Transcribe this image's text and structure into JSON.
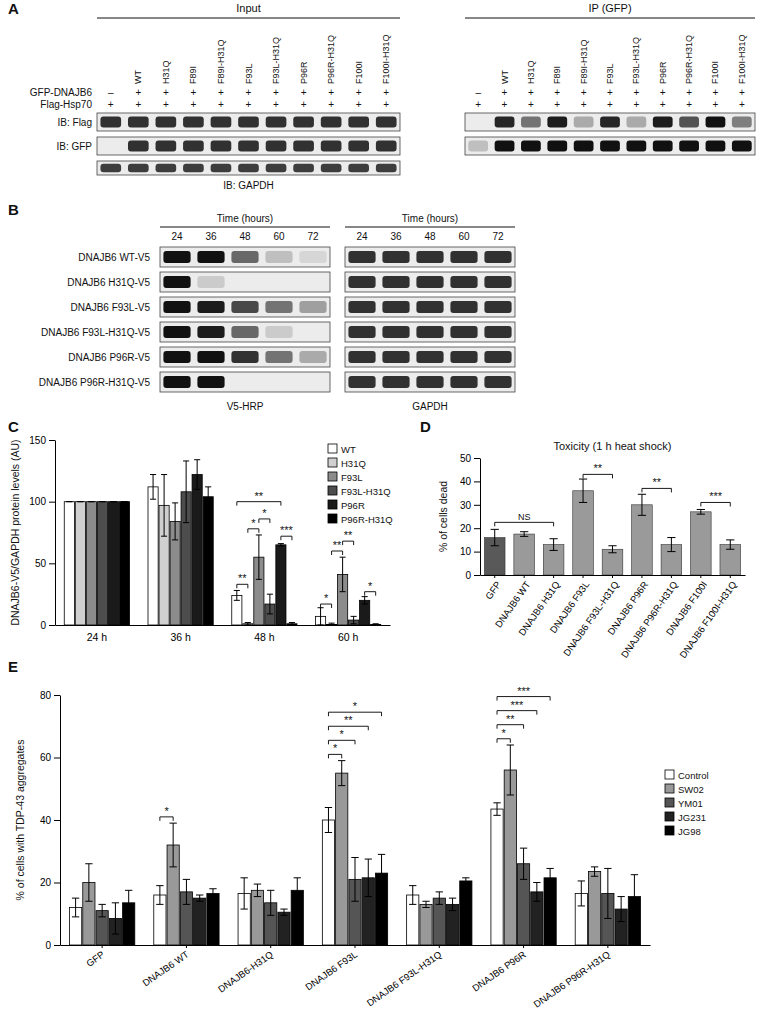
{
  "figure_A": {
    "panel_label": "A",
    "input_title": "Input",
    "ip_title": "IP (GFP)",
    "row_labels": {
      "gfp": "GFP-DNAJB6",
      "flag": "Flag-Hsp70"
    },
    "lanes": [
      null,
      "WT",
      "H31Q",
      "F89I",
      "F89I-H31Q",
      "F93L",
      "F93L-H31Q",
      "P96R",
      "P96R-H31Q",
      "F100I",
      "F100I-H31Q"
    ],
    "gfp_signs": [
      "–",
      "+",
      "+",
      "+",
      "+",
      "+",
      "+",
      "+",
      "+",
      "+",
      "+"
    ],
    "flag_signs": [
      "+",
      "+",
      "+",
      "+",
      "+",
      "+",
      "+",
      "+",
      "+",
      "+",
      "+"
    ],
    "input_blots": [
      {
        "label": "IB: Flag",
        "intensity": [
          0.85,
          0.85,
          0.85,
          0.85,
          0.85,
          0.85,
          0.85,
          0.85,
          0.85,
          0.85,
          0.85
        ]
      },
      {
        "label": "IB: GFP",
        "intensity": [
          0,
          0.85,
          0.85,
          0.85,
          0.85,
          0.85,
          0.85,
          0.85,
          0.85,
          0.85,
          0.85
        ]
      },
      {
        "label": "IB: GAPDH",
        "intensity": [
          0.8,
          0.8,
          0.8,
          0.8,
          0.8,
          0.8,
          0.8,
          0.8,
          0.8,
          0.8,
          0.8
        ]
      }
    ],
    "ip_blots": [
      {
        "intensity": [
          0,
          0.9,
          0.55,
          0.95,
          0.3,
          0.9,
          0.3,
          0.95,
          0.7,
          1,
          0.5
        ]
      },
      {
        "intensity": [
          0.2,
          1,
          1,
          1,
          1,
          1,
          1,
          1,
          1,
          1,
          1
        ]
      }
    ]
  },
  "figure_B": {
    "panel_label": "B",
    "time_title": "Time (hours)",
    "times": [
      24,
      36,
      48,
      60,
      72
    ],
    "rows": [
      "DNAJB6 WT-V5",
      "DNAJB6 H31Q-V5",
      "DNAJB6 F93L-V5",
      "DNAJB6 F93L-H31Q-V5",
      "DNAJB6 P96R-V5",
      "DNAJB6 P96R-H31Q-V5"
    ],
    "v5": {
      "label": "V5-HRP",
      "intensity": [
        [
          1,
          1,
          0.6,
          0.2,
          0.1
        ],
        [
          1,
          0.15,
          0,
          0,
          0
        ],
        [
          1,
          0.95,
          0.75,
          0.55,
          0.35
        ],
        [
          1,
          0.95,
          0.6,
          0.15,
          0
        ],
        [
          1,
          1,
          0.85,
          0.55,
          0.3
        ],
        [
          1,
          1,
          0,
          0,
          0
        ]
      ]
    },
    "gapdh": {
      "label": "GAPDH",
      "intensity": [
        [
          0.85,
          0.85,
          0.85,
          0.85,
          0.85
        ],
        [
          0.85,
          0.85,
          0.85,
          0.85,
          0.85
        ],
        [
          0.85,
          0.85,
          0.85,
          0.85,
          0.85
        ],
        [
          0.85,
          0.85,
          0.85,
          0.85,
          0.85
        ],
        [
          0.85,
          0.85,
          0.85,
          0.85,
          0.85
        ],
        [
          0.85,
          0.85,
          0.85,
          0.85,
          0.85
        ]
      ]
    }
  },
  "chart_data": [
    {
      "panel_label": "C",
      "type": "bar",
      "y_label": "DNAJB6-V5/GAPDH protein levels (AU)",
      "categories": [
        "24 h",
        "36 h",
        "48 h",
        "60 h"
      ],
      "ylim": [
        0,
        150
      ],
      "yticks": [
        0,
        50,
        100,
        150
      ],
      "legend": "top-right",
      "series": [
        {
          "name": "WT",
          "color": "#ffffff",
          "values": [
            100,
            112,
            24,
            7
          ],
          "errors": [
            0,
            10,
            4,
            7
          ]
        },
        {
          "name": "H31Q",
          "color": "#d0d0d0",
          "values": [
            100,
            97,
            1,
            0.5
          ],
          "errors": [
            0,
            25,
            1,
            1
          ]
        },
        {
          "name": "F93L",
          "color": "#8c8c8c",
          "values": [
            100,
            84,
            55,
            41
          ],
          "errors": [
            0,
            15,
            18,
            14
          ]
        },
        {
          "name": "F93L-H31Q",
          "color": "#4d4d4d",
          "values": [
            100,
            108,
            17,
            4
          ],
          "errors": [
            0,
            25,
            8,
            3
          ]
        },
        {
          "name": "P96R",
          "color": "#1a1a1a",
          "values": [
            100,
            122,
            65,
            20
          ],
          "errors": [
            0,
            12,
            1,
            3
          ]
        },
        {
          "name": "P96R-H31Q",
          "color": "#000000",
          "values": [
            100,
            104,
            1,
            0.5
          ],
          "errors": [
            0,
            8,
            1,
            0.5
          ]
        }
      ],
      "annotations": [
        {
          "text": "**",
          "category": 2,
          "from": 0,
          "to": 1,
          "y": 33
        },
        {
          "text": "*",
          "category": 2,
          "from": 1,
          "to": 2,
          "y": 78
        },
        {
          "text": "*",
          "category": 2,
          "from": 2,
          "to": 3,
          "y": 86
        },
        {
          "text": "**",
          "category": 2,
          "from": 0,
          "to": 4,
          "y": 100
        },
        {
          "text": "***",
          "category": 2,
          "from": 4,
          "to": 5,
          "y": 72
        },
        {
          "text": "*",
          "category": 3,
          "from": 0,
          "to": 1,
          "y": 17
        },
        {
          "text": "**",
          "category": 3,
          "from": 1,
          "to": 2,
          "y": 60
        },
        {
          "text": "**",
          "category": 3,
          "from": 2,
          "to": 3,
          "y": 68
        },
        {
          "text": "*",
          "category": 3,
          "from": 4,
          "to": 5,
          "y": 27
        }
      ]
    },
    {
      "panel_label": "D",
      "type": "bar",
      "title": "Toxicity (1 h heat shock)",
      "y_label": "% of cells dead",
      "categories": [
        "GFP",
        "DNAJB6 WT",
        "DNAJB6 H31Q",
        "DNAJB6 F93L",
        "DNAJB6 F93L-H31Q",
        "DNAJB6 P96R",
        "DNAJB6 P96R-H31Q",
        "DNAJB6 F100I",
        "DNAJB6 F100I-H31Q"
      ],
      "values": [
        16,
        17.5,
        13,
        36,
        11,
        30,
        13,
        27,
        13
      ],
      "errors": [
        3.5,
        1,
        2.5,
        5,
        1.5,
        4.5,
        3,
        1,
        2
      ],
      "colors": [
        "#595959",
        "#9a9a9a",
        "#9a9a9a",
        "#9a9a9a",
        "#9a9a9a",
        "#9a9a9a",
        "#9a9a9a",
        "#9a9a9a",
        "#9a9a9a"
      ],
      "ylim": [
        0,
        50
      ],
      "yticks": [
        0,
        10,
        20,
        30,
        40,
        50
      ],
      "annotations": [
        {
          "text": "NS",
          "from": 0,
          "to": 2,
          "y": 22.5
        },
        {
          "text": "**",
          "from": 3,
          "to": 4,
          "y": 43
        },
        {
          "text": "**",
          "from": 5,
          "to": 6,
          "y": 37
        },
        {
          "text": "***",
          "from": 7,
          "to": 8,
          "y": 31
        }
      ]
    },
    {
      "panel_label": "E",
      "type": "bar",
      "y_label": "% of cells with TDP-43 aggregates",
      "categories": [
        "GFP",
        "DNAJB6 WT",
        "DNAJB6-H31Q",
        "DNAJB6 F93L",
        "DNAJB6 F93L-H31Q",
        "DNAJB6 P96R",
        "DNAJB6 P96R-H31Q"
      ],
      "ylim": [
        0,
        80
      ],
      "yticks": [
        0,
        20,
        40,
        60,
        80
      ],
      "legend": "right",
      "series": [
        {
          "name": "Control",
          "color": "#ffffff",
          "values": [
            12,
            16,
            16.5,
            40,
            16,
            43.5,
            16.5
          ],
          "errors": [
            3,
            3,
            5,
            4,
            3,
            2,
            4
          ]
        },
        {
          "name": "SW02",
          "color": "#999999",
          "values": [
            20,
            32,
            17.5,
            55,
            13,
            56,
            23.5
          ],
          "errors": [
            6,
            7,
            2,
            4,
            1,
            8,
            1.5
          ]
        },
        {
          "name": "YM01",
          "color": "#555555",
          "values": [
            11,
            17,
            13.5,
            21,
            15,
            26,
            16.5
          ],
          "errors": [
            2,
            4,
            4,
            7,
            2,
            5,
            8
          ]
        },
        {
          "name": "JG231",
          "color": "#222222",
          "values": [
            8.5,
            15,
            10.5,
            21.5,
            13,
            17,
            11.5
          ],
          "errors": [
            5,
            1,
            1,
            6,
            2,
            3,
            4
          ]
        },
        {
          "name": "JG98",
          "color": "#000000",
          "values": [
            13.5,
            16.5,
            17.5,
            23,
            20.5,
            21.5,
            15.5
          ],
          "errors": [
            4,
            1.5,
            4,
            6,
            1,
            3,
            7
          ]
        }
      ],
      "annotations": [
        {
          "text": "*",
          "category": 1,
          "from": 0,
          "to": 1,
          "y": 41
        },
        {
          "text": "*",
          "category": 3,
          "from": 0,
          "to": 1,
          "y": 61
        },
        {
          "text": "*",
          "category": 3,
          "from": 0,
          "to": 2,
          "y": 65.5
        },
        {
          "text": "**",
          "category": 3,
          "from": 0,
          "to": 3,
          "y": 70
        },
        {
          "text": "*",
          "category": 3,
          "from": 0,
          "to": 4,
          "y": 74.5
        },
        {
          "text": "*",
          "category": 5,
          "from": 0,
          "to": 1,
          "y": 66
        },
        {
          "text": "**",
          "category": 5,
          "from": 0,
          "to": 2,
          "y": 70.5
        },
        {
          "text": "***",
          "category": 5,
          "from": 0,
          "to": 3,
          "y": 75
        },
        {
          "text": "***",
          "category": 5,
          "from": 0,
          "to": 4,
          "y": 79.5
        }
      ]
    }
  ]
}
